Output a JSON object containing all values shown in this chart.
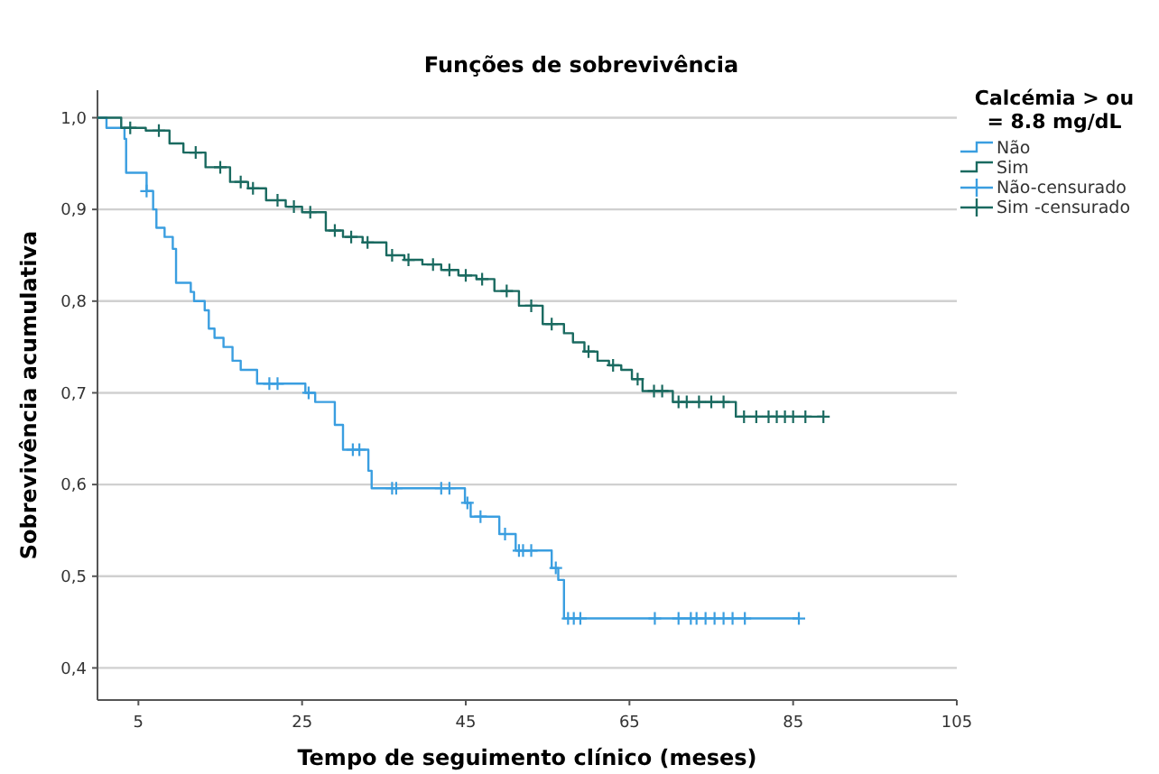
{
  "chart_data": {
    "type": "step",
    "title": "Funções de sobrevivência",
    "xlabel": "Tempo de seguimento clínico (meses)",
    "ylabel": "Sobrevivência acumulativa",
    "legend_title": "Calcémia > ou = 8.8 mg/dL",
    "legend": "top right",
    "grid": "y",
    "xlim": [
      0,
      105
    ],
    "xticks": [
      5,
      25,
      45,
      65,
      85,
      105
    ],
    "ylim": [
      0.365,
      1.03
    ],
    "yticks": [
      {
        "value": 0.4,
        "label": "0,4"
      },
      {
        "value": 0.5,
        "label": "0,5"
      },
      {
        "value": 0.6,
        "label": "0,6"
      },
      {
        "value": 0.7,
        "label": "0,7"
      },
      {
        "value": 0.8,
        "label": "0,8"
      },
      {
        "value": 0.9,
        "label": "0,9"
      },
      {
        "value": 1,
        "label": "1,0"
      }
    ],
    "series": [
      {
        "name": "Não",
        "color": "#3a9ee0",
        "x": [
          0,
          1.1,
          3.3,
          3.5,
          6.0,
          6.8,
          7.2,
          8.2,
          9.2,
          9.6,
          11.4,
          11.8,
          13.1,
          13.6,
          14.3,
          15.4,
          16.5,
          17.5,
          19.5,
          25.4,
          26.6,
          29.0,
          30.0,
          33.1,
          33.5,
          44.9,
          45.6,
          49.1,
          51.1,
          55.5,
          56.3,
          57.0,
          85.7
        ],
        "values": [
          1.0,
          0.989,
          0.977,
          0.94,
          0.92,
          0.9,
          0.88,
          0.87,
          0.857,
          0.82,
          0.81,
          0.8,
          0.79,
          0.77,
          0.76,
          0.75,
          0.735,
          0.725,
          0.71,
          0.7,
          0.69,
          0.665,
          0.638,
          0.615,
          0.596,
          0.58,
          0.565,
          0.546,
          0.528,
          0.509,
          0.496,
          0.454,
          0.454
        ]
      },
      {
        "name": "Sim",
        "color": "#1a6a60",
        "x": [
          0,
          2.9,
          5.9,
          8.8,
          10.5,
          13.2,
          16.2,
          18.4,
          20.6,
          23,
          25,
          27.9,
          30,
          32.4,
          35.3,
          37.5,
          39.7,
          42,
          44.1,
          46.3,
          48.5,
          51.5,
          54.4,
          57,
          58.1,
          59.5,
          61.1,
          62.5,
          64,
          65.3,
          66.6,
          70.3,
          78,
          88.7
        ],
        "values": [
          1.0,
          0.989,
          0.986,
          0.972,
          0.962,
          0.946,
          0.93,
          0.923,
          0.91,
          0.903,
          0.897,
          0.877,
          0.87,
          0.864,
          0.85,
          0.845,
          0.84,
          0.834,
          0.828,
          0.824,
          0.811,
          0.795,
          0.775,
          0.765,
          0.755,
          0.745,
          0.735,
          0.73,
          0.725,
          0.715,
          0.702,
          0.69,
          0.674,
          0.674
        ]
      },
      {
        "name": "Não-censurado",
        "type": "scatter",
        "marker": "cross",
        "color": "#3a9ee0",
        "x": [
          6.0,
          21,
          22,
          25.8,
          31.2,
          32,
          36,
          36.5,
          42,
          43,
          45.2,
          46.8,
          49.8,
          51.5,
          52,
          53,
          56,
          57.5,
          58.2,
          59,
          68.1,
          71,
          72.5,
          73.2,
          74.3,
          75.4,
          76.5,
          77.6,
          79.1,
          85.7
        ],
        "values": [
          0.92,
          0.71,
          0.71,
          0.7,
          0.638,
          0.638,
          0.596,
          0.596,
          0.596,
          0.596,
          0.58,
          0.565,
          0.546,
          0.528,
          0.528,
          0.528,
          0.509,
          0.454,
          0.454,
          0.454,
          0.454,
          0.454,
          0.454,
          0.454,
          0.454,
          0.454,
          0.454,
          0.454,
          0.454,
          0.454
        ]
      },
      {
        "name": "Sim -censurado",
        "type": "scatter",
        "marker": "cross",
        "color": "#1a6a60",
        "x": [
          4,
          7.5,
          12,
          15,
          17.5,
          19,
          22,
          24,
          26,
          29,
          31,
          33,
          36,
          38,
          41,
          43,
          45,
          47,
          50,
          53,
          55.5,
          60,
          63,
          66,
          68,
          69,
          71,
          72,
          73.5,
          75,
          76.5,
          79,
          80.5,
          82,
          83,
          84,
          85,
          86.5,
          88.7
        ],
        "values": [
          0.989,
          0.986,
          0.962,
          0.946,
          0.93,
          0.923,
          0.91,
          0.903,
          0.897,
          0.877,
          0.87,
          0.864,
          0.85,
          0.845,
          0.84,
          0.834,
          0.828,
          0.824,
          0.811,
          0.795,
          0.775,
          0.745,
          0.73,
          0.715,
          0.702,
          0.702,
          0.69,
          0.69,
          0.69,
          0.69,
          0.69,
          0.674,
          0.674,
          0.674,
          0.674,
          0.674,
          0.674,
          0.674,
          0.674
        ]
      }
    ]
  }
}
